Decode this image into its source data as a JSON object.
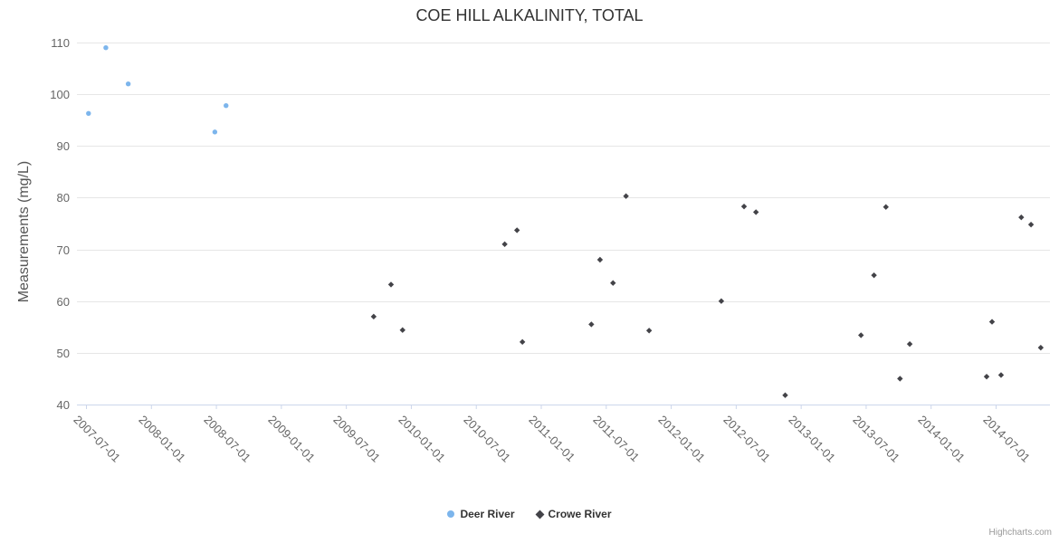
{
  "chart_data": {
    "type": "scatter",
    "title": "COE HILL ALKALINITY, TOTAL",
    "xlabel": "",
    "ylabel": "Measurements (mg/L)",
    "ylim": [
      40,
      110
    ],
    "yticks": [
      40,
      50,
      60,
      70,
      80,
      90,
      100,
      110
    ],
    "xtick_labels": [
      "2007-07-01",
      "2008-01-01",
      "2008-07-01",
      "2009-01-01",
      "2009-07-01",
      "2010-01-01",
      "2010-07-01",
      "2011-01-01",
      "2011-07-01",
      "2012-01-01",
      "2012-07-01",
      "2013-01-01",
      "2013-07-01",
      "2014-01-01",
      "2014-07-01"
    ],
    "grid": "horizontal-only",
    "legend_position": "bottom-center",
    "credits": "Highcharts.com",
    "colors": {
      "deer_river": "#7cb5ec",
      "crowe_river": "#434348",
      "gridline": "#e6e6e6",
      "axis_line": "#ccd6eb"
    },
    "series": [
      {
        "name": "Deer River",
        "color": "#7cb5ec",
        "marker": "circle",
        "points": [
          {
            "date": "2007-07-08",
            "value": 96.3
          },
          {
            "date": "2007-08-26",
            "value": 109
          },
          {
            "date": "2007-10-28",
            "value": 102
          },
          {
            "date": "2008-06-28",
            "value": 92.7
          },
          {
            "date": "2008-07-29",
            "value": 97.8
          }
        ]
      },
      {
        "name": "Crowe River",
        "color": "#434348",
        "marker": "diamond",
        "points": [
          {
            "date": "2009-09-18",
            "value": 57
          },
          {
            "date": "2009-11-06",
            "value": 63.2
          },
          {
            "date": "2009-12-08",
            "value": 54.4
          },
          {
            "date": "2010-09-21",
            "value": 71
          },
          {
            "date": "2010-10-25",
            "value": 73.7
          },
          {
            "date": "2010-11-10",
            "value": 52.1
          },
          {
            "date": "2011-05-21",
            "value": 55.5
          },
          {
            "date": "2011-06-15",
            "value": 68
          },
          {
            "date": "2011-07-21",
            "value": 63.5
          },
          {
            "date": "2011-08-27",
            "value": 80.3
          },
          {
            "date": "2011-11-01",
            "value": 54.3
          },
          {
            "date": "2012-05-21",
            "value": 60
          },
          {
            "date": "2012-07-24",
            "value": 78.3
          },
          {
            "date": "2012-08-27",
            "value": 77.2
          },
          {
            "date": "2012-11-18",
            "value": 41.8
          },
          {
            "date": "2013-06-18",
            "value": 53.4
          },
          {
            "date": "2013-07-24",
            "value": 65
          },
          {
            "date": "2013-08-27",
            "value": 78.2
          },
          {
            "date": "2013-10-06",
            "value": 45
          },
          {
            "date": "2013-11-03",
            "value": 51.7
          },
          {
            "date": "2014-06-06",
            "value": 45.4
          },
          {
            "date": "2014-06-21",
            "value": 56
          },
          {
            "date": "2014-07-16",
            "value": 45.7
          },
          {
            "date": "2014-09-12",
            "value": 76.2
          },
          {
            "date": "2014-10-09",
            "value": 74.8
          },
          {
            "date": "2014-11-06",
            "value": 51
          }
        ]
      }
    ]
  }
}
